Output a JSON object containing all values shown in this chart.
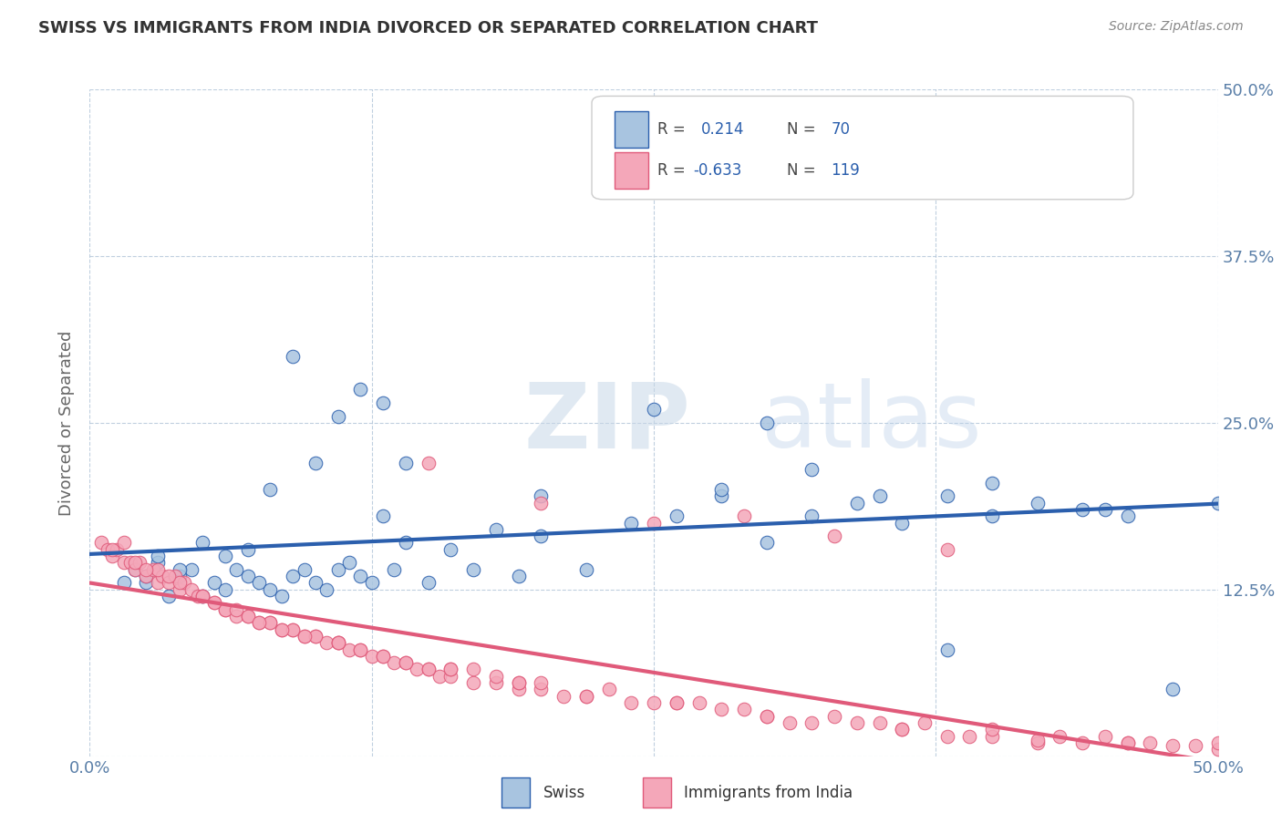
{
  "title": "SWISS VS IMMIGRANTS FROM INDIA DIVORCED OR SEPARATED CORRELATION CHART",
  "source": "Source: ZipAtlas.com",
  "ylabel": "Divorced or Separated",
  "xlim": [
    0.0,
    0.5
  ],
  "ylim": [
    0.0,
    0.5
  ],
  "swiss_color": "#a8c4e0",
  "india_color": "#f4a7b9",
  "swiss_line_color": "#2b5fad",
  "india_line_color": "#e05a7a",
  "grid_color": "#b0c4d8",
  "background_color": "#ffffff",
  "title_color": "#333333",
  "axis_label_color": "#5a7fa8",
  "watermark_zip": "ZIP",
  "watermark_atlas": "atlas",
  "swiss_scatter_x": [
    0.02,
    0.025,
    0.03,
    0.035,
    0.04,
    0.045,
    0.05,
    0.055,
    0.06,
    0.065,
    0.07,
    0.075,
    0.08,
    0.085,
    0.09,
    0.095,
    0.1,
    0.105,
    0.11,
    0.115,
    0.12,
    0.125,
    0.13,
    0.135,
    0.14,
    0.15,
    0.16,
    0.17,
    0.18,
    0.19,
    0.2,
    0.22,
    0.24,
    0.26,
    0.28,
    0.3,
    0.32,
    0.34,
    0.36,
    0.38,
    0.4,
    0.42,
    0.44,
    0.46,
    0.48,
    0.015,
    0.025,
    0.03,
    0.04,
    0.05,
    0.06,
    0.07,
    0.08,
    0.09,
    0.1,
    0.11,
    0.12,
    0.13,
    0.14,
    0.2,
    0.25,
    0.3,
    0.35,
    0.4,
    0.45,
    0.5,
    0.28,
    0.32,
    0.38
  ],
  "swiss_scatter_y": [
    0.14,
    0.13,
    0.145,
    0.12,
    0.135,
    0.14,
    0.12,
    0.13,
    0.125,
    0.14,
    0.135,
    0.13,
    0.125,
    0.12,
    0.135,
    0.14,
    0.13,
    0.125,
    0.14,
    0.145,
    0.135,
    0.13,
    0.18,
    0.14,
    0.16,
    0.13,
    0.155,
    0.14,
    0.17,
    0.135,
    0.165,
    0.14,
    0.175,
    0.18,
    0.195,
    0.16,
    0.18,
    0.19,
    0.175,
    0.195,
    0.18,
    0.19,
    0.185,
    0.18,
    0.05,
    0.13,
    0.135,
    0.15,
    0.14,
    0.16,
    0.15,
    0.155,
    0.2,
    0.3,
    0.22,
    0.255,
    0.275,
    0.265,
    0.22,
    0.195,
    0.26,
    0.25,
    0.195,
    0.205,
    0.185,
    0.19,
    0.2,
    0.215,
    0.08
  ],
  "india_scatter_x": [
    0.005,
    0.008,
    0.01,
    0.012,
    0.015,
    0.018,
    0.02,
    0.022,
    0.025,
    0.028,
    0.03,
    0.032,
    0.035,
    0.038,
    0.04,
    0.042,
    0.045,
    0.048,
    0.05,
    0.055,
    0.06,
    0.065,
    0.07,
    0.075,
    0.08,
    0.085,
    0.09,
    0.095,
    0.1,
    0.105,
    0.11,
    0.115,
    0.12,
    0.125,
    0.13,
    0.135,
    0.14,
    0.145,
    0.15,
    0.155,
    0.16,
    0.17,
    0.18,
    0.19,
    0.2,
    0.22,
    0.24,
    0.26,
    0.28,
    0.3,
    0.32,
    0.34,
    0.36,
    0.38,
    0.4,
    0.42,
    0.44,
    0.46,
    0.48,
    0.5,
    0.01,
    0.02,
    0.03,
    0.04,
    0.05,
    0.06,
    0.07,
    0.08,
    0.09,
    0.1,
    0.12,
    0.14,
    0.16,
    0.18,
    0.2,
    0.25,
    0.3,
    0.35,
    0.4,
    0.45,
    0.5,
    0.15,
    0.17,
    0.19,
    0.21,
    0.23,
    0.27,
    0.33,
    0.37,
    0.43,
    0.47,
    0.015,
    0.025,
    0.035,
    0.055,
    0.065,
    0.075,
    0.085,
    0.095,
    0.11,
    0.13,
    0.16,
    0.19,
    0.22,
    0.26,
    0.29,
    0.31,
    0.36,
    0.39,
    0.42,
    0.46,
    0.49,
    0.11,
    0.15,
    0.2,
    0.25,
    0.29,
    0.33,
    0.38
  ],
  "india_scatter_y": [
    0.16,
    0.155,
    0.15,
    0.155,
    0.145,
    0.145,
    0.14,
    0.145,
    0.135,
    0.14,
    0.13,
    0.135,
    0.13,
    0.135,
    0.125,
    0.13,
    0.125,
    0.12,
    0.12,
    0.115,
    0.11,
    0.105,
    0.105,
    0.1,
    0.1,
    0.095,
    0.095,
    0.09,
    0.09,
    0.085,
    0.085,
    0.08,
    0.08,
    0.075,
    0.075,
    0.07,
    0.07,
    0.065,
    0.065,
    0.06,
    0.06,
    0.055,
    0.055,
    0.05,
    0.05,
    0.045,
    0.04,
    0.04,
    0.035,
    0.03,
    0.025,
    0.025,
    0.02,
    0.015,
    0.015,
    0.01,
    0.01,
    0.01,
    0.008,
    0.005,
    0.155,
    0.145,
    0.14,
    0.13,
    0.12,
    0.11,
    0.105,
    0.1,
    0.095,
    0.09,
    0.08,
    0.07,
    0.065,
    0.06,
    0.055,
    0.04,
    0.03,
    0.025,
    0.02,
    0.015,
    0.01,
    0.065,
    0.065,
    0.055,
    0.045,
    0.05,
    0.04,
    0.03,
    0.025,
    0.015,
    0.01,
    0.16,
    0.14,
    0.135,
    0.115,
    0.11,
    0.1,
    0.095,
    0.09,
    0.085,
    0.075,
    0.065,
    0.055,
    0.045,
    0.04,
    0.035,
    0.025,
    0.02,
    0.015,
    0.012,
    0.01,
    0.008,
    0.085,
    0.22,
    0.19,
    0.175,
    0.18,
    0.165,
    0.155
  ]
}
